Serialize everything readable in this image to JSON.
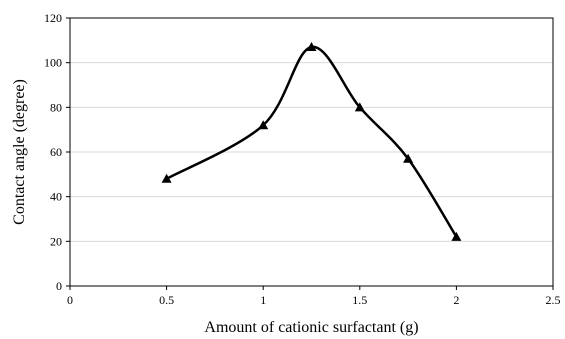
{
  "chart_data": {
    "type": "line",
    "title": "",
    "xlabel": "Amount of cationic surfactant (g)",
    "ylabel": "Contact angle (degree)",
    "xlim": [
      0,
      2.5
    ],
    "ylim": [
      0,
      120
    ],
    "x_ticks": [
      0,
      0.5,
      1,
      1.5,
      2,
      2.5
    ],
    "y_ticks": [
      0,
      20,
      40,
      60,
      80,
      100,
      120
    ],
    "x_tick_labels": [
      "0",
      "0.5",
      "1",
      "1.5",
      "2",
      "2.5"
    ],
    "y_tick_labels": [
      "0",
      "20",
      "40",
      "60",
      "80",
      "100",
      "120"
    ],
    "grid": "horizontal",
    "legend": "none",
    "smooth": true,
    "marker": "triangle",
    "series": [
      {
        "x": [
          0.5,
          1,
          1.25,
          1.5,
          1.75,
          2
        ],
        "y": [
          48,
          72,
          107,
          80,
          57,
          22
        ],
        "color": "#000000"
      }
    ]
  }
}
